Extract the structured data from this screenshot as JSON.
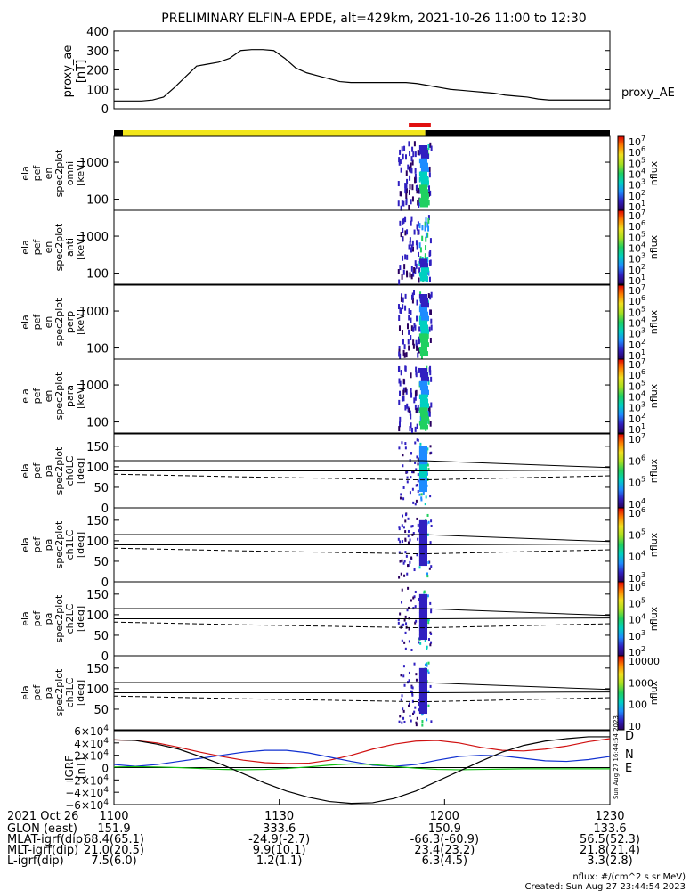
{
  "title": "PRELIMINARY ELFIN-A EPDE, alt=429km, 2021-10-26 11:00 to 12:30",
  "colors": {
    "yellow_bar": "#f2e61a",
    "black_bar": "#000000",
    "red_marker": "#e01010",
    "ae_line": "#000000",
    "D": "#d01010",
    "N": "#1030d0",
    "E": "#10c010"
  },
  "chart_data": [
    {
      "type": "line",
      "id": "proxy_ae",
      "ylabel": [
        "proxy_ae",
        "[nT]"
      ],
      "ylim": [
        0,
        400
      ],
      "yticks": [
        "400",
        "300",
        "200",
        "100",
        "0"
      ],
      "series": [
        {
          "name": "proxy_AE",
          "x": [
            0,
            3,
            5,
            7,
            9,
            11,
            13,
            15,
            17,
            19,
            21,
            23,
            25,
            27,
            29,
            31,
            33,
            35,
            37,
            39,
            41,
            43,
            45,
            47,
            49,
            51,
            53,
            55,
            57,
            59,
            61,
            63,
            65,
            67,
            69,
            71,
            73,
            75,
            77,
            79,
            81,
            83,
            85,
            87,
            89,
            90
          ],
          "values": [
            40,
            40,
            40,
            45,
            60,
            110,
            165,
            220,
            230,
            240,
            260,
            300,
            305,
            305,
            300,
            260,
            210,
            185,
            170,
            155,
            140,
            135,
            135,
            135,
            135,
            135,
            135,
            130,
            120,
            110,
            100,
            95,
            90,
            85,
            80,
            70,
            65,
            60,
            50,
            45,
            45,
            45,
            45,
            45,
            45,
            45
          ]
        }
      ]
    },
    {
      "type": "heatmap",
      "id": "spec_omni",
      "ylabel": [
        "ela",
        "pef",
        "en",
        "spec2plot",
        "omni",
        "[keV]"
      ],
      "yticks": [
        "1000",
        "100"
      ],
      "colorbar": {
        "label": "nflux",
        "ticks": [
          "10^7",
          "10^6",
          "10^5",
          "10^4",
          "10^3",
          "10^2",
          "10^1"
        ]
      }
    },
    {
      "type": "heatmap",
      "id": "spec_anti",
      "ylabel": [
        "ela",
        "pef",
        "en",
        "spec2plot",
        "anti",
        "[keV]"
      ],
      "yticks": [
        "1000",
        "100"
      ],
      "colorbar": {
        "label": "nflux",
        "ticks": [
          "10^7",
          "10^6",
          "10^5",
          "10^4",
          "10^3",
          "10^2",
          "10^1"
        ]
      }
    },
    {
      "type": "heatmap",
      "id": "spec_perp",
      "ylabel": [
        "ela",
        "pef",
        "en",
        "spec2plot",
        "perp",
        "[keV]"
      ],
      "yticks": [
        "1000",
        "100"
      ],
      "colorbar": {
        "label": "nflux",
        "ticks": [
          "10^7",
          "10^6",
          "10^5",
          "10^4",
          "10^3",
          "10^2",
          "10^1"
        ]
      }
    },
    {
      "type": "heatmap",
      "id": "spec_para",
      "ylabel": [
        "ela",
        "pef",
        "en",
        "spec2plot",
        "para",
        "[keV]"
      ],
      "yticks": [
        "1000",
        "100"
      ],
      "colorbar": {
        "label": "nflux",
        "ticks": [
          "10^7",
          "10^6",
          "10^5",
          "10^4",
          "10^3",
          "10^2",
          "10^1"
        ]
      }
    },
    {
      "type": "heatmap",
      "id": "pa_ch0",
      "ylabel": [
        "ela",
        "pef",
        "pa",
        "spec2plot",
        "ch0LC",
        "[deg]"
      ],
      "yticks": [
        "150",
        "100",
        "50",
        "0"
      ],
      "colorbar": {
        "label": "nflux",
        "ticks": [
          "10^7",
          "10^6",
          "10^5",
          "10^4"
        ]
      }
    },
    {
      "type": "heatmap",
      "id": "pa_ch1",
      "ylabel": [
        "ela",
        "pef",
        "pa",
        "spec2plot",
        "ch1LC",
        "[deg]"
      ],
      "yticks": [
        "150",
        "100",
        "50",
        "0"
      ],
      "colorbar": {
        "label": "nflux",
        "ticks": [
          "10^6",
          "10^5",
          "10^4",
          "10^3"
        ]
      }
    },
    {
      "type": "heatmap",
      "id": "pa_ch2",
      "ylabel": [
        "ela",
        "pef",
        "pa",
        "spec2plot",
        "ch2LC",
        "[deg]"
      ],
      "yticks": [
        "150",
        "100",
        "50",
        "0"
      ],
      "colorbar": {
        "label": "nflux",
        "ticks": [
          "10^6",
          "10^5",
          "10^4",
          "10^3",
          "10^2"
        ]
      }
    },
    {
      "type": "heatmap",
      "id": "pa_ch3",
      "ylabel": [
        "ela",
        "pef",
        "pa",
        "spec2plot",
        "ch3LC",
        "[deg]"
      ],
      "yticks": [
        "150",
        "100",
        "50"
      ],
      "colorbar": {
        "label": "nflux",
        "ticks": [
          "10000",
          "1000",
          "100",
          "10"
        ]
      }
    },
    {
      "type": "line",
      "id": "igrf",
      "ylabel": [
        "IGRF",
        "[nT]"
      ],
      "ylim": [
        -60000,
        60000
      ],
      "yticks": [
        "6×10^4",
        "4×10^4",
        "2×10^4",
        "0",
        "−2×10^4",
        "−4×10^4",
        "−6×10^4"
      ],
      "series": [
        {
          "name": "D",
          "values": [
            45000,
            44000,
            40000,
            33000,
            25000,
            18000,
            12000,
            8000,
            6500,
            7000,
            12000,
            20000,
            30000,
            38000,
            43000,
            44000,
            40000,
            33000,
            28000,
            27000,
            30000,
            35000,
            42000,
            47000
          ]
        },
        {
          "name": "N",
          "values": [
            5000,
            2000,
            5000,
            10000,
            15000,
            20000,
            25000,
            28000,
            28000,
            24000,
            17000,
            10000,
            4000,
            2000,
            5000,
            12000,
            18000,
            20000,
            19000,
            15000,
            11000,
            10000,
            13000,
            18000
          ]
        },
        {
          "name": "E",
          "values": [
            1000,
            1500,
            1000,
            0,
            -1500,
            -3000,
            -3500,
            -3000,
            -1500,
            1000,
            4000,
            6000,
            5000,
            2000,
            -1000,
            -3000,
            -3500,
            -3000,
            -2500,
            -2000,
            -2000,
            -2000,
            -2000,
            -2000
          ]
        },
        {
          "name": "total",
          "values": [
            45000,
            44000,
            38000,
            30000,
            18000,
            5000,
            -10000,
            -25000,
            -38000,
            -48000,
            -55000,
            -58000,
            -57000,
            -50000,
            -38000,
            -22000,
            -6000,
            10000,
            25000,
            36000,
            43000,
            47000,
            50000,
            50000
          ]
        }
      ]
    }
  ],
  "igrf_legend": [
    "D",
    "N",
    "E"
  ],
  "colorbar_stamp": "Sun Aug 27 16:44:54 2023",
  "xaxis_rows": [
    {
      "label": "2021 Oct 26",
      "values": [
        "1100",
        "1130",
        "1200",
        "1230"
      ]
    },
    {
      "label": "GLON (east)",
      "values": [
        "151.9",
        "333.6",
        "150.9",
        "133.6"
      ]
    },
    {
      "label": "MLAT-igrf(dip)",
      "values": [
        "68.4(65.1)",
        "-24.9(-2.7)",
        "-66.3(-60.9)",
        "56.5(52.3)"
      ]
    },
    {
      "label": "MLT-igrf(dip)",
      "values": [
        "21.0(20.5)",
        "9.9(10.1)",
        "23.4(23.2)",
        "21.8(21.4)"
      ]
    },
    {
      "label": "L-igrf(dip)",
      "values": [
        "7.5(6.0)",
        "1.2(1.1)",
        "6.3(4.5)",
        "3.3(2.8)"
      ]
    }
  ],
  "footer": {
    "units": "nflux: #/(cm^2 s sr MeV)",
    "created": "Created: Sun Aug 27 23:44:54 2023"
  }
}
